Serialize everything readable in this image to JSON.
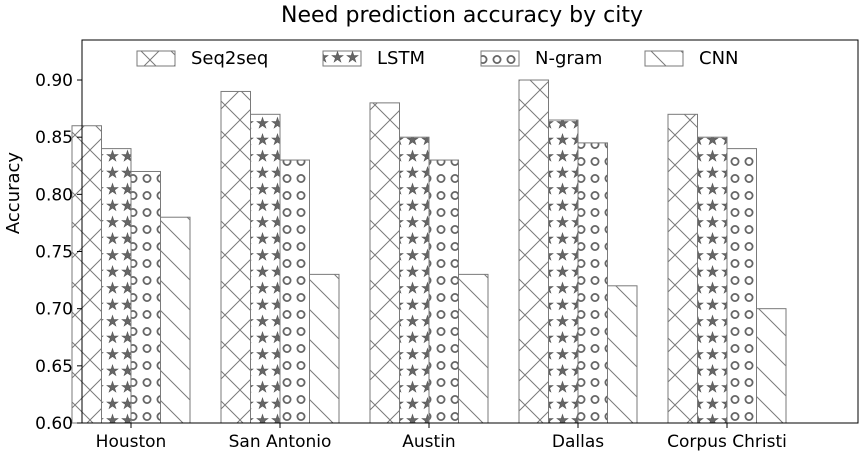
{
  "chart_data": {
    "type": "bar",
    "title": "Need prediction accuracy by city",
    "xlabel": "",
    "ylabel": "Accuracy",
    "categories": [
      "Houston",
      "San Antonio",
      "Austin",
      "Dallas",
      "Corpus Christi"
    ],
    "series": [
      {
        "name": "Seq2seq",
        "values": [
          0.86,
          0.89,
          0.88,
          0.9,
          0.87
        ],
        "pattern": "crosshatch"
      },
      {
        "name": "LSTM",
        "values": [
          0.84,
          0.87,
          0.85,
          0.865,
          0.85
        ],
        "pattern": "stars"
      },
      {
        "name": "N-gram",
        "values": [
          0.82,
          0.83,
          0.83,
          0.845,
          0.84
        ],
        "pattern": "circles"
      },
      {
        "name": "CNN",
        "values": [
          0.78,
          0.73,
          0.73,
          0.72,
          0.7
        ],
        "pattern": "backslash"
      }
    ],
    "ylim": [
      0.6,
      0.935
    ],
    "yticks": [
      "0.60",
      "0.65",
      "0.70",
      "0.75",
      "0.80",
      "0.85",
      "0.90"
    ],
    "legend_position": "top",
    "grid": false,
    "colors": {
      "bar_edge": "#7a7a7a",
      "bar_fill": "#ffffff",
      "star_fill": "#666666",
      "axis": "#000000"
    }
  }
}
